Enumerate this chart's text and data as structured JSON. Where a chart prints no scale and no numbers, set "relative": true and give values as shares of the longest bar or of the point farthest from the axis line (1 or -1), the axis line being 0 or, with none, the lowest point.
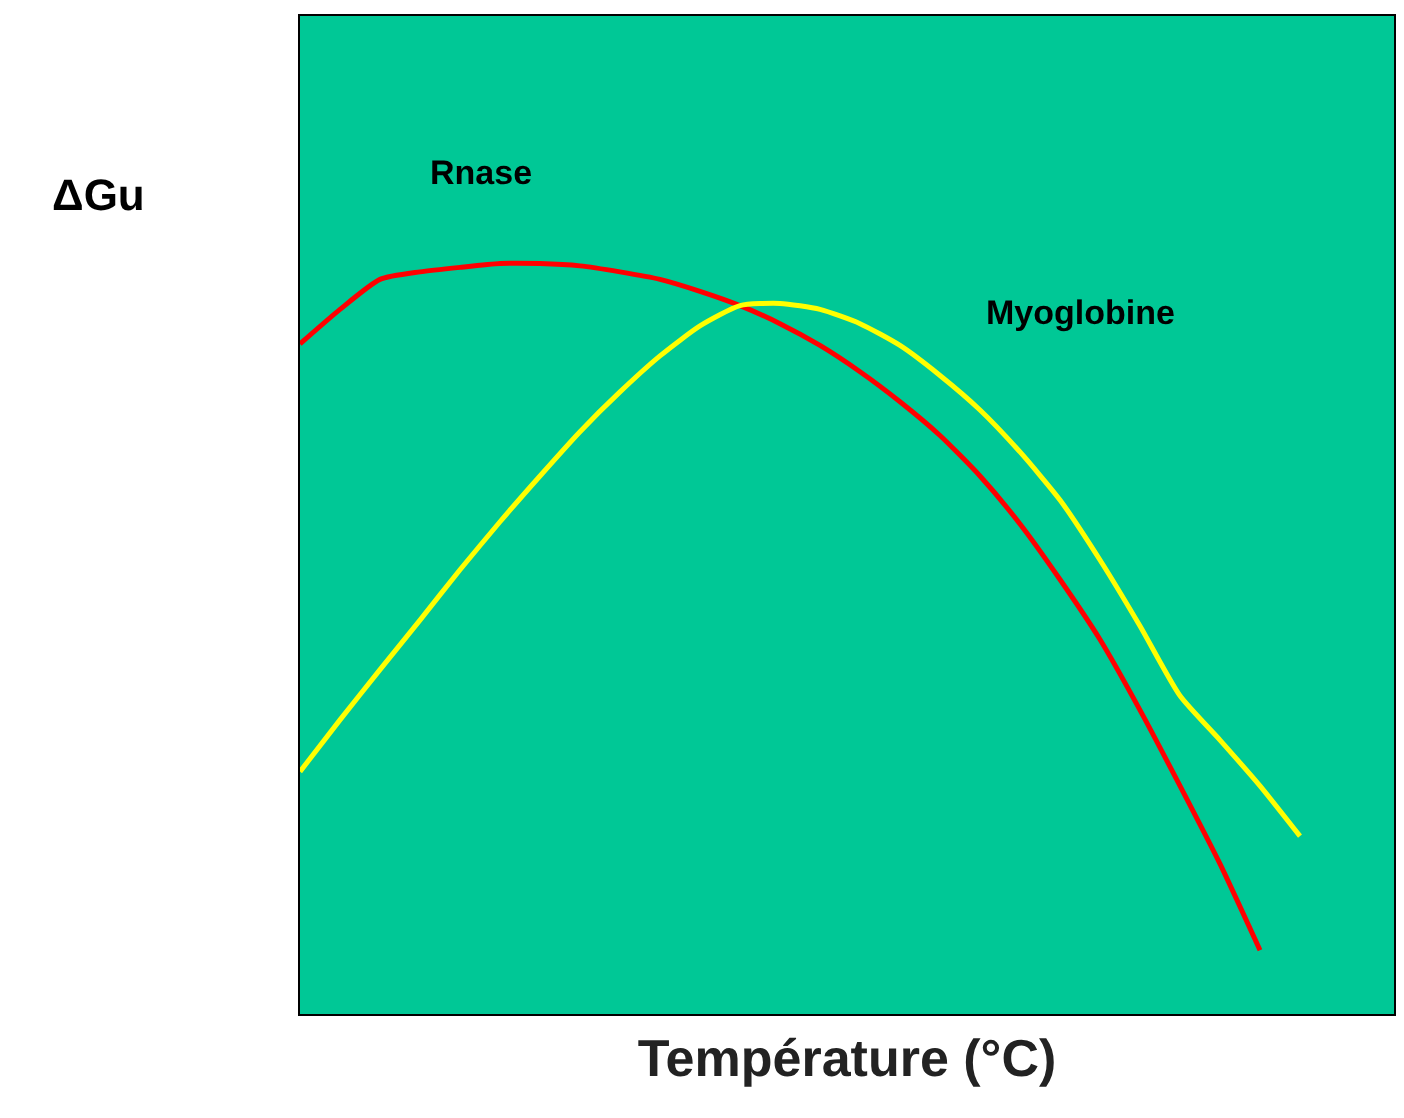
{
  "chart_data": {
    "type": "line",
    "relative": true,
    "xlabel": "Température (°C)",
    "ylabel": "ΔGu",
    "categories": [
      null,
      null,
      null,
      null,
      null,
      null,
      null,
      null,
      null,
      null,
      null,
      null,
      null,
      null,
      null,
      null,
      null,
      null,
      null,
      null,
      null,
      null,
      null,
      null,
      null,
      null
    ],
    "series": [
      {
        "name": "Rnase",
        "color": "#ff0000",
        "values": [
          0.893,
          0.939,
          0.979,
          0.989,
          0.995,
          1.0,
          1.0,
          0.997,
          0.989,
          0.979,
          0.963,
          0.944,
          0.92,
          0.891,
          0.856,
          0.816,
          0.771,
          0.717,
          0.653,
          0.579,
          0.499,
          0.405,
          0.304,
          0.2,
          0.085,
          null
        ]
      },
      {
        "name": "Myoglobine",
        "color": "#ffff00",
        "values": [
          0.323,
          0.392,
          0.459,
          0.525,
          0.592,
          0.656,
          0.717,
          0.776,
          0.829,
          0.877,
          0.917,
          0.944,
          0.947,
          0.939,
          0.92,
          0.891,
          0.851,
          0.805,
          0.749,
          0.685,
          0.605,
          0.517,
          0.424,
          0.365,
          0.304,
          0.237
        ]
      }
    ],
    "grid": false,
    "legend": false,
    "marker": "none",
    "line_style": "solid"
  }
}
